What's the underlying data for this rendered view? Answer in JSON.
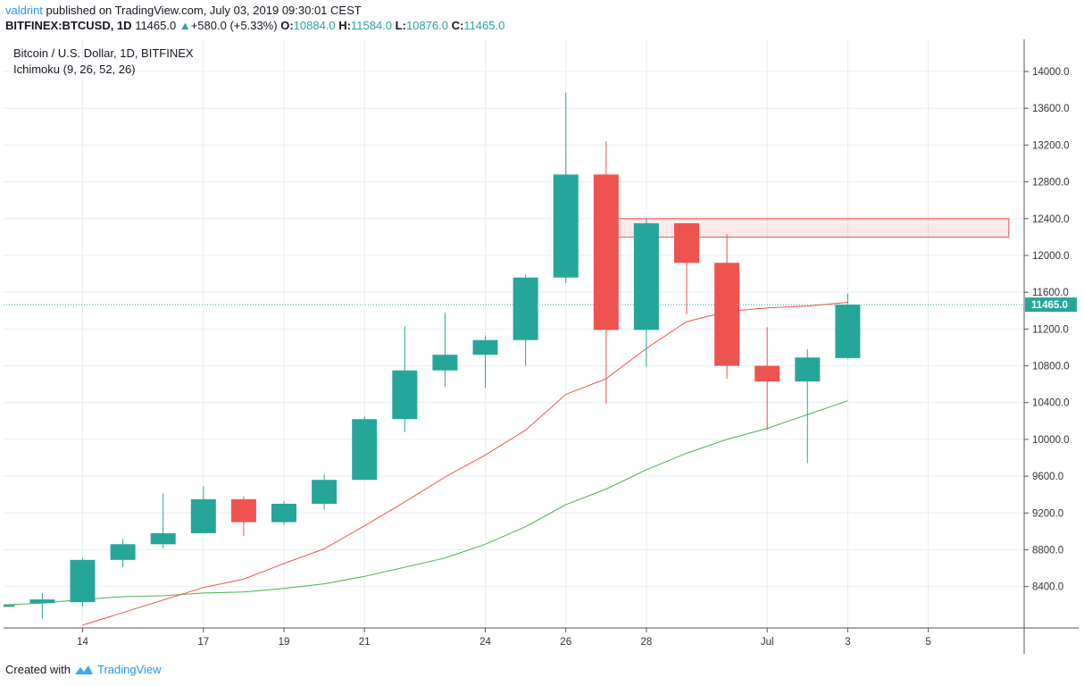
{
  "header": {
    "author": "valdrint",
    "published_text": "published on TradingView.com, July 03, 2019 09:30:01 CEST",
    "symbol": "BITFINEX:BTCUSD, 1D",
    "price": "11465.0",
    "change": "+580.0 (+5.33%)",
    "o_label": "O:",
    "o_value": "10884.0",
    "h_label": "H:",
    "h_value": "11584.0",
    "l_label": "L:",
    "l_value": "10876.0",
    "c_label": "C:",
    "c_value": "11465.0"
  },
  "legend": {
    "title": "Bitcoin / U.S. Dollar, 1D, BITFINEX",
    "indicator": "Ichimoku (9, 26, 52, 26)"
  },
  "footer": {
    "created_with": "Created with",
    "brand": "TradingView"
  },
  "colors": {
    "up": "#26a69a",
    "down": "#ef5350",
    "conversion_line": "#ef5350",
    "base_line": "#4caf50",
    "price_line": "#26a69a",
    "zone": "#ef5350",
    "grid": "#e8eef5"
  },
  "chart_data": {
    "type": "candlestick",
    "x_ticks": [
      "14",
      "17",
      "19",
      "21",
      "24",
      "26",
      "28",
      "Jul",
      "3",
      "5"
    ],
    "y_ticks": [
      "8400.0",
      "8800.0",
      "9200.0",
      "9600.0",
      "10000.0",
      "10400.0",
      "10800.0",
      "11200.0",
      "11600.0",
      "12000.0",
      "12400.0",
      "12800.0",
      "13200.0",
      "13600.0",
      "14000.0"
    ],
    "ylim": [
      7950,
      14350
    ],
    "current_price_label": "11465.0",
    "current_price": 11465,
    "candles": [
      {
        "date": "2019-06-12",
        "open": 8180,
        "high": 8200,
        "low": 8050,
        "close": 8200
      },
      {
        "date": "2019-06-13",
        "open": 8220,
        "high": 8330,
        "low": 8050,
        "close": 8260
      },
      {
        "date": "2019-06-14",
        "open": 8230,
        "high": 8710,
        "low": 8180,
        "close": 8690
      },
      {
        "date": "2019-06-15",
        "open": 8690,
        "high": 8920,
        "low": 8610,
        "close": 8860
      },
      {
        "date": "2019-06-16",
        "open": 8860,
        "high": 9410,
        "low": 8810,
        "close": 8980
      },
      {
        "date": "2019-06-17",
        "open": 8980,
        "high": 9490,
        "low": 8980,
        "close": 9350
      },
      {
        "date": "2019-06-18",
        "open": 9350,
        "high": 9380,
        "low": 8950,
        "close": 9100
      },
      {
        "date": "2019-06-19",
        "open": 9100,
        "high": 9330,
        "low": 9070,
        "close": 9300
      },
      {
        "date": "2019-06-20",
        "open": 9300,
        "high": 9620,
        "low": 9240,
        "close": 9560
      },
      {
        "date": "2019-06-21",
        "open": 9560,
        "high": 10250,
        "low": 9560,
        "close": 10220
      },
      {
        "date": "2019-06-22",
        "open": 10220,
        "high": 11230,
        "low": 10080,
        "close": 10750
      },
      {
        "date": "2019-06-23",
        "open": 10750,
        "high": 11380,
        "low": 10570,
        "close": 10920
      },
      {
        "date": "2019-06-24",
        "open": 10920,
        "high": 11130,
        "low": 10560,
        "close": 11080
      },
      {
        "date": "2019-06-25",
        "open": 11080,
        "high": 11790,
        "low": 10800,
        "close": 11760
      },
      {
        "date": "2019-06-26",
        "open": 11760,
        "high": 13770,
        "low": 11700,
        "close": 12880
      },
      {
        "date": "2019-06-27",
        "open": 12880,
        "high": 13240,
        "low": 10390,
        "close": 11190
      },
      {
        "date": "2019-06-28",
        "open": 11190,
        "high": 12410,
        "low": 10790,
        "close": 12350
      },
      {
        "date": "2019-06-29",
        "open": 12350,
        "high": 12350,
        "low": 11360,
        "close": 11920
      },
      {
        "date": "2019-06-30",
        "open": 11920,
        "high": 12230,
        "low": 10660,
        "close": 10800
      },
      {
        "date": "2019-07-01",
        "open": 10800,
        "high": 11220,
        "low": 10100,
        "close": 10630
      },
      {
        "date": "2019-07-02",
        "open": 10630,
        "high": 10980,
        "low": 9740,
        "close": 10890
      },
      {
        "date": "2019-07-03",
        "open": 10884,
        "high": 11584,
        "low": 10876,
        "close": 11465
      }
    ],
    "conversion_line": [
      {
        "date": "2019-06-14",
        "value": 7980
      },
      {
        "date": "2019-06-17",
        "value": 8390
      },
      {
        "date": "2019-06-18",
        "value": 8480
      },
      {
        "date": "2019-06-19",
        "value": 8650
      },
      {
        "date": "2019-06-20",
        "value": 8810
      },
      {
        "date": "2019-06-21",
        "value": 9060
      },
      {
        "date": "2019-06-22",
        "value": 9320
      },
      {
        "date": "2019-06-23",
        "value": 9590
      },
      {
        "date": "2019-06-24",
        "value": 9830
      },
      {
        "date": "2019-06-25",
        "value": 10100
      },
      {
        "date": "2019-06-26",
        "value": 10490
      },
      {
        "date": "2019-06-27",
        "value": 10660
      },
      {
        "date": "2019-06-28",
        "value": 10990
      },
      {
        "date": "2019-06-29",
        "value": 11280
      },
      {
        "date": "2019-06-30",
        "value": 11390
      },
      {
        "date": "2019-07-01",
        "value": 11430
      },
      {
        "date": "2019-07-02",
        "value": 11450
      },
      {
        "date": "2019-07-03",
        "value": 11490
      }
    ],
    "base_line": [
      {
        "date": "2019-06-12",
        "value": 8200
      },
      {
        "date": "2019-06-13",
        "value": 8220
      },
      {
        "date": "2019-06-14",
        "value": 8260
      },
      {
        "date": "2019-06-15",
        "value": 8290
      },
      {
        "date": "2019-06-16",
        "value": 8300
      },
      {
        "date": "2019-06-17",
        "value": 8330
      },
      {
        "date": "2019-06-18",
        "value": 8340
      },
      {
        "date": "2019-06-19",
        "value": 8380
      },
      {
        "date": "2019-06-20",
        "value": 8430
      },
      {
        "date": "2019-06-21",
        "value": 8510
      },
      {
        "date": "2019-06-22",
        "value": 8610
      },
      {
        "date": "2019-06-23",
        "value": 8710
      },
      {
        "date": "2019-06-24",
        "value": 8860
      },
      {
        "date": "2019-06-25",
        "value": 9050
      },
      {
        "date": "2019-06-26",
        "value": 9290
      },
      {
        "date": "2019-06-27",
        "value": 9460
      },
      {
        "date": "2019-06-28",
        "value": 9670
      },
      {
        "date": "2019-06-29",
        "value": 9850
      },
      {
        "date": "2019-06-30",
        "value": 10000
      },
      {
        "date": "2019-07-01",
        "value": 10120
      },
      {
        "date": "2019-07-02",
        "value": 10270
      },
      {
        "date": "2019-07-03",
        "value": 10420
      }
    ],
    "resistance_zone": {
      "from": "2019-06-27",
      "to": "2019-07-07",
      "low": 12200,
      "high": 12400
    }
  }
}
